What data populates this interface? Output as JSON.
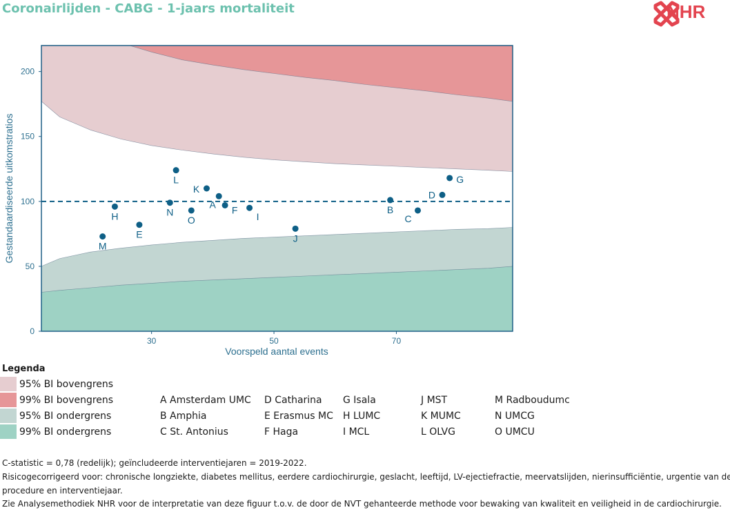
{
  "title": "Coronairlijden - CABG - 1-jaars mortaliteit",
  "logo": {
    "text": "NHR",
    "color": "#e3444f"
  },
  "chart_data": {
    "type": "scatter",
    "xlabel": "Voorspeld aantal events",
    "ylabel": "Gestandaardiseerde uitkomstratios",
    "xlim": [
      12,
      89
    ],
    "ylim": [
      0,
      220
    ],
    "xticks": [
      30,
      50,
      70
    ],
    "yticks": [
      0,
      50,
      100,
      150,
      200
    ],
    "reference_line": 100,
    "bands": {
      "x": [
        12,
        15,
        20,
        25,
        30,
        35,
        40,
        45,
        50,
        55,
        60,
        65,
        70,
        75,
        80,
        85,
        89
      ],
      "ci99_lower": [
        30,
        31.5,
        33.5,
        35.5,
        37,
        38.5,
        39.5,
        40.5,
        41.5,
        42.5,
        43.5,
        44.5,
        45.5,
        46.5,
        47.5,
        48.5,
        50
      ],
      "ci95_lower": [
        50,
        56,
        61,
        64,
        66.5,
        68.5,
        70,
        71.5,
        72.5,
        73.5,
        74.5,
        75.5,
        76.5,
        77.5,
        78.5,
        79,
        80
      ],
      "ci95_upper": [
        177,
        165,
        155,
        148,
        143,
        139.5,
        136.5,
        134,
        132,
        130.5,
        129,
        128,
        127,
        126,
        125,
        124,
        123
      ],
      "ci99_upper": [
        262,
        245,
        232,
        222,
        215,
        209,
        205,
        201.5,
        198.5,
        195.5,
        193,
        190,
        187.5,
        185,
        182,
        179.5,
        177
      ]
    },
    "colors": {
      "ci95_upper": "#e6cdd0",
      "ci99_upper": "#e69698",
      "ci95_lower": "#c2d6d2",
      "ci99_lower": "#9ed2c4",
      "inner": "#ffffff",
      "point": "#0e5f86",
      "axis_text": "#2c6f8f"
    },
    "points": [
      {
        "label": "A",
        "x": 41,
        "y": 104
      },
      {
        "label": "B",
        "x": 69,
        "y": 101
      },
      {
        "label": "C",
        "x": 73.5,
        "y": 93
      },
      {
        "label": "D",
        "x": 77.5,
        "y": 105
      },
      {
        "label": "E",
        "x": 28,
        "y": 82
      },
      {
        "label": "F",
        "x": 42,
        "y": 97
      },
      {
        "label": "G",
        "x": 78.7,
        "y": 118
      },
      {
        "label": "H",
        "x": 24,
        "y": 96
      },
      {
        "label": "I",
        "x": 46,
        "y": 95
      },
      {
        "label": "J",
        "x": 53.5,
        "y": 79
      },
      {
        "label": "K",
        "x": 39,
        "y": 110
      },
      {
        "label": "L",
        "x": 34,
        "y": 124
      },
      {
        "label": "M",
        "x": 22,
        "y": 73
      },
      {
        "label": "N",
        "x": 33,
        "y": 99
      },
      {
        "label": "O",
        "x": 36.5,
        "y": 93
      }
    ]
  },
  "legend": {
    "title": "Legenda",
    "items": [
      {
        "label": "95% BI bovengrens",
        "color": "#e6cdd0"
      },
      {
        "label": "99% BI bovengrens",
        "color": "#e69698"
      },
      {
        "label": "95% BI ondergrens",
        "color": "#c2d6d2"
      },
      {
        "label": "99% BI ondergrens",
        "color": "#9ed2c4"
      }
    ]
  },
  "hospitals": [
    [
      "A Amsterdam UMC",
      "B Amphia",
      "C St. Antonius"
    ],
    [
      "D Catharina",
      "E Erasmus MC",
      "F Haga"
    ],
    [
      "G Isala",
      "H LUMC",
      "I MCL"
    ],
    [
      "J MST",
      "K MUMC",
      "L OLVG"
    ],
    [
      "M Radboudumc",
      "N UMCG",
      "O UMCU"
    ]
  ],
  "footnotes": [
    "C-statistic =  0,78 (redelijk); geïncludeerde interventiejaren = 2019-2022.",
    "Risicogecorrigeerd voor: chronische longziekte, diabetes mellitus, eerdere cardiochirurgie, geslacht, leeftijd, LV-ejectiefractie, meervatslijden, nierinsufficiëntie, urgentie van de",
    "procedure en interventiejaar.",
    "Zie Analysemethodiek NHR voor de interpretatie van deze figuur t.o.v. de door de NVT gehanteerde methode voor bewaking van kwaliteit en veiligheid in de cardiochirurgie."
  ]
}
